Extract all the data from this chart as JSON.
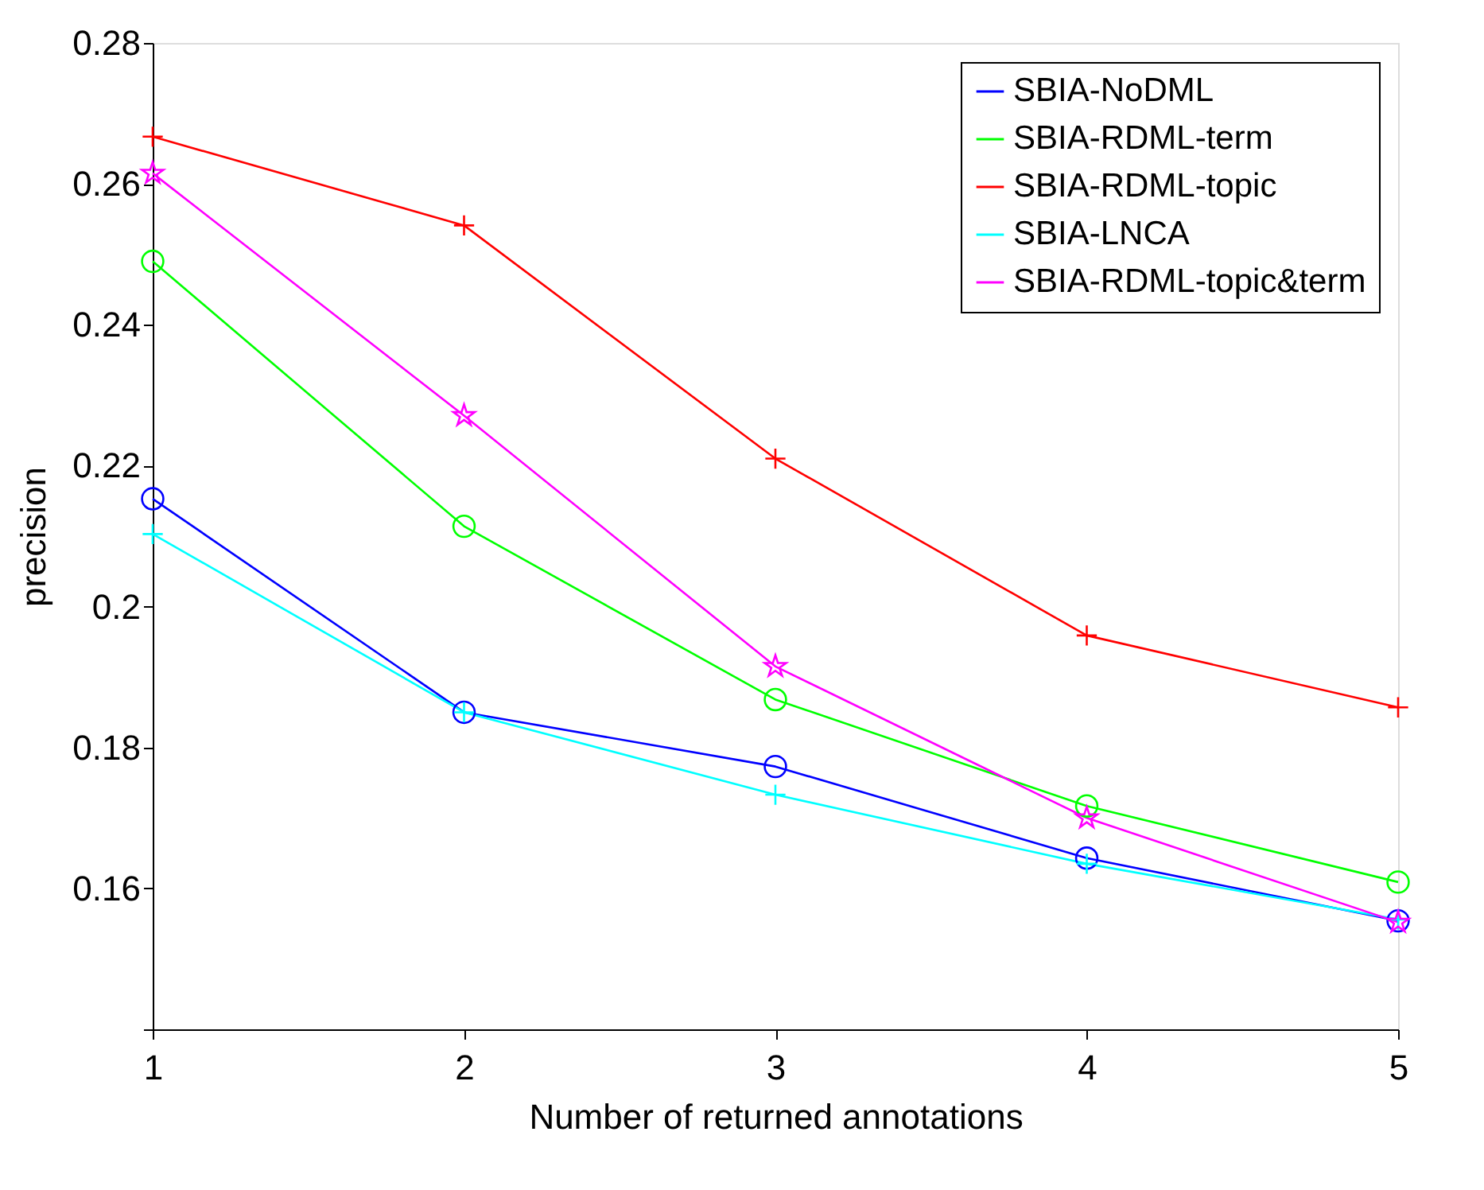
{
  "chart_data": {
    "type": "line",
    "xlabel": "Number of returned annotations",
    "ylabel": "precision",
    "x": [
      1,
      2,
      3,
      4,
      5
    ],
    "xlim": [
      1,
      5
    ],
    "xticks": [
      1,
      2,
      3,
      4,
      5
    ],
    "ylim": [
      0.14,
      0.28
    ],
    "yticks": [
      {
        "value": 0.14,
        "label": null
      },
      0.16,
      0.18,
      {
        "value": 0.2,
        "label": "0.2"
      },
      0.22,
      0.24,
      0.26,
      0.28
    ],
    "grid": false,
    "legend": "top right",
    "line_style": "solid",
    "series": [
      {
        "name": "SBIA-NoDML",
        "color": "#0000ff",
        "marker": "circle",
        "values": [
          0.2153,
          0.185,
          0.1773,
          0.1643,
          0.1554
        ]
      },
      {
        "name": "SBIA-RDML-term",
        "color": "#00ff00",
        "marker": "circle",
        "values": [
          0.249,
          0.2114,
          0.1868,
          0.1717,
          0.1609
        ]
      },
      {
        "name": "SBIA-RDML-topic",
        "color": "#ff0000",
        "marker": "cross",
        "values": [
          0.2667,
          0.2541,
          0.221,
          0.1959,
          0.1857
        ]
      },
      {
        "name": "SBIA-LNCA",
        "color": "#00ffff",
        "marker": "cross",
        "values": [
          0.2103,
          0.185,
          0.1733,
          0.1635,
          0.1556
        ]
      },
      {
        "name": "SBIA-RDML-topic&term",
        "color": "#ff00ff",
        "marker": "star",
        "values": [
          0.2615,
          0.2271,
          0.1915,
          0.17,
          0.1552
        ]
      }
    ]
  }
}
